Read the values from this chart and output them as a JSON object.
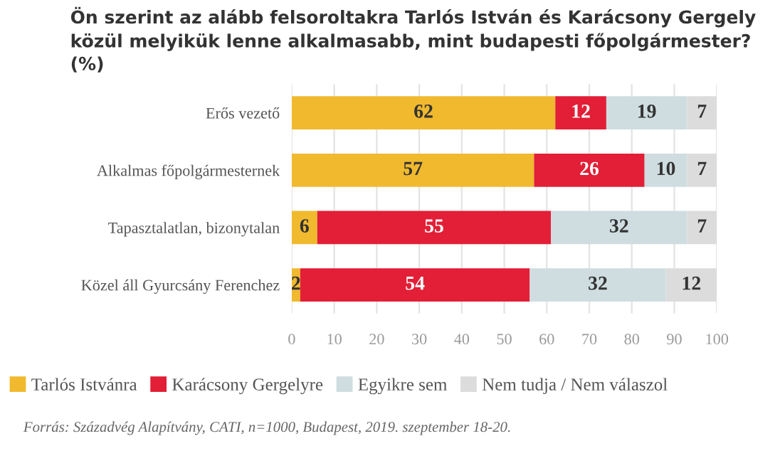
{
  "chart_data": {
    "type": "bar",
    "orientation": "horizontal",
    "stacked": true,
    "title": "Ön szerint az alább felsoroltakra Tarlós István és Karácsony Gergely\nközül melyikük lenne alkalmasabb, mint budapesti főpolgármester?\n(%)",
    "categories": [
      "Erős vezető",
      "Alkalmas főpolgármesternek",
      "Tapasztalatlan, bizonytalan",
      "Közel áll Gyurcsány Ferenchez"
    ],
    "series": [
      {
        "name": "Tarlós Istvánra",
        "color": "#f0b92e",
        "values": [
          62,
          57,
          6,
          2
        ]
      },
      {
        "name": "Karácsony Gergelyre",
        "color": "#e21f36",
        "values": [
          12,
          26,
          55,
          54
        ]
      },
      {
        "name": "Egyikre sem",
        "color": "#cfdde0",
        "values": [
          19,
          10,
          32,
          32
        ]
      },
      {
        "name": "Nem tudja / Nem válaszol",
        "color": "#dcdcdc",
        "values": [
          7,
          7,
          7,
          12
        ]
      }
    ],
    "xlim": [
      0,
      100
    ],
    "xticks": [
      0,
      10,
      20,
      30,
      40,
      50,
      60,
      70,
      80,
      90,
      100
    ],
    "grid": "x",
    "legend": "bottom",
    "data_labels": true,
    "annotations": [
      "Forrás: Századvég Alapítvány, CATI, n=1000, Budapest, 2019. szeptember 18-20."
    ]
  }
}
